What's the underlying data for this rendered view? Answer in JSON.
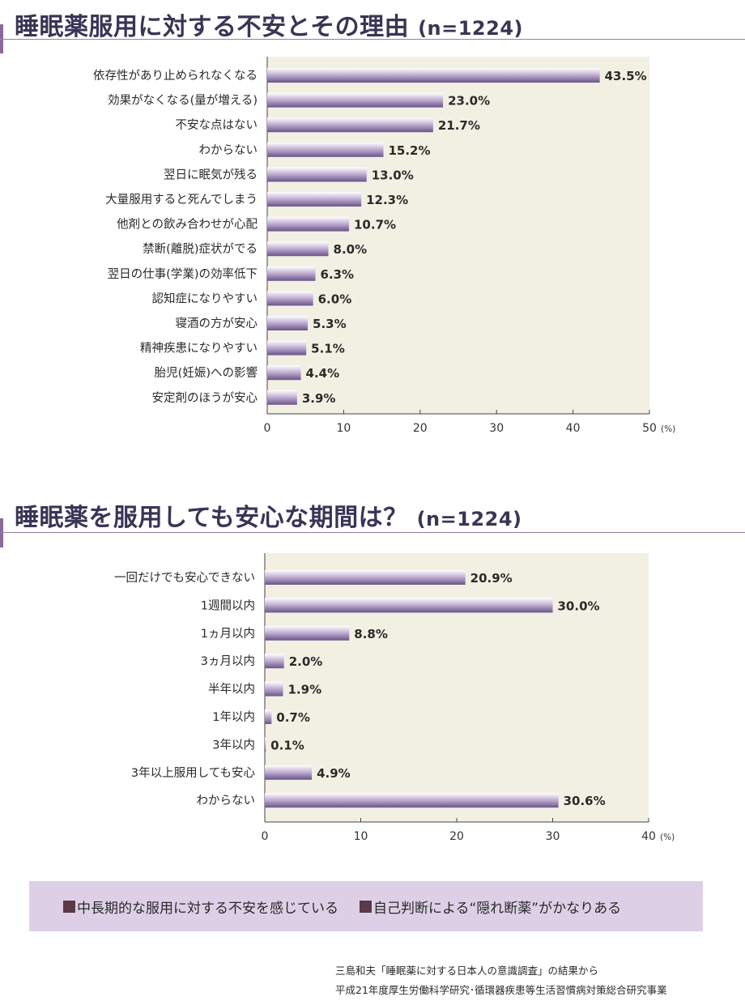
{
  "colors": {
    "bar_light": "#ffffff",
    "bar_mid": "#c5b3d6",
    "bar_dark": "#6a5488",
    "plot_bg": "#f1f0e3",
    "title": "#3a3555",
    "summary_bg": "#ddd0e6",
    "summary_square": "#5a3a48"
  },
  "titles": {
    "chart1_main": "睡眠薬服用に対する不安とその理由",
    "chart1_n": "(n=1224)",
    "chart2_main": "睡眠薬を服用しても安心な期間は？",
    "chart2_n": "(n=1224)"
  },
  "chart_data": [
    {
      "type": "bar",
      "orientation": "horizontal",
      "title": "睡眠薬服用に対する不安とその理由 (n=1224)",
      "xlabel": "(%)",
      "xlim": [
        0,
        50
      ],
      "ticks": [
        "0",
        "10",
        "20",
        "30",
        "40",
        "50"
      ],
      "tick_values": [
        0,
        10,
        20,
        30,
        40,
        50
      ],
      "grid": false,
      "categories": [
        "依存性があり止められなくなる",
        "効果がなくなる(量が増える)",
        "不安な点はない",
        "わからない",
        "翌日に眠気が残る",
        "大量服用すると死んでしまう",
        "他剤との飲み合わせが心配",
        "禁断(離脱)症状がでる",
        "翌日の仕事(学業)の効率低下",
        "認知症になりやすい",
        "寝酒の方が安心",
        "精神疾患になりやすい",
        "胎児(妊娠)への影響",
        "安定剤のほうが安心"
      ],
      "values": [
        43.5,
        23.0,
        21.7,
        15.2,
        13.0,
        12.3,
        10.7,
        8.0,
        6.3,
        6.0,
        5.3,
        5.1,
        4.4,
        3.9
      ],
      "value_labels": [
        "43.5%",
        "23.0%",
        "21.7%",
        "15.2%",
        "13.0%",
        "12.3%",
        "10.7%",
        "8.0%",
        "6.3%",
        "6.0%",
        "5.3%",
        "5.1%",
        "4.4%",
        "3.9%"
      ]
    },
    {
      "type": "bar",
      "orientation": "horizontal",
      "title": "睡眠薬を服用しても安心な期間は？(n=1224)",
      "xlabel": "(%)",
      "xlim": [
        0,
        40
      ],
      "ticks": [
        "0",
        "10",
        "20",
        "30",
        "40"
      ],
      "tick_values": [
        0,
        10,
        20,
        30,
        40
      ],
      "grid": false,
      "categories": [
        "一回だけでも安心できない",
        "1週間以内",
        "1ヵ月以内",
        "3ヵ月以内",
        "半年以内",
        "1年以内",
        "3年以内",
        "3年以上服用しても安心",
        "わからない"
      ],
      "values": [
        20.9,
        30.0,
        8.8,
        2.0,
        1.9,
        0.7,
        0.1,
        4.9,
        30.6
      ],
      "value_labels": [
        "20.9%",
        "30.0%",
        "8.8%",
        "2.0%",
        "1.9%",
        "0.7%",
        "0.1%",
        "4.9%",
        "30.6%"
      ]
    }
  ],
  "summary": {
    "item1": "中長期的な服用に対する不安を感じている",
    "item2": "自己判断による“隠れ断薬”がかなりある"
  },
  "source": {
    "line1": "三島和夫「睡眠薬に対する日本人の意識調査」の結果から",
    "line2": "平成21年度厚生労働科学研究･循環器疾患等生活習慣病対策総合研究事業"
  }
}
